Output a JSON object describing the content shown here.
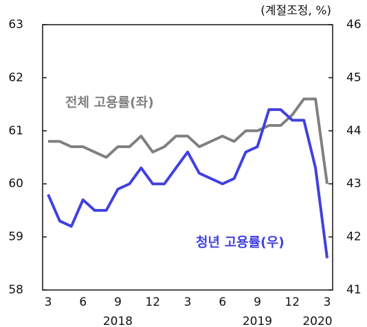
{
  "chart_data": {
    "type": "line",
    "unit_label": "(계절조정, %)",
    "categories": [
      "3",
      null,
      null,
      "6",
      null,
      null,
      "9",
      null,
      null,
      "12",
      null,
      null,
      "3",
      null,
      null,
      "6",
      null,
      null,
      "9",
      null,
      null,
      "12",
      null,
      null,
      "3"
    ],
    "years": [
      "2018",
      "2019",
      "2020"
    ],
    "ylim": [
      58,
      63
    ],
    "yticks": [
      58,
      59,
      60,
      61,
      62,
      63
    ],
    "y2lim": [
      41,
      46
    ],
    "y2ticks": [
      41,
      42,
      43,
      44,
      45,
      46
    ],
    "series": [
      {
        "name": "전체 고용률(좌)",
        "color": "#808080",
        "axis": "y",
        "values": [
          60.8,
          60.8,
          60.7,
          60.7,
          60.6,
          60.5,
          60.7,
          60.7,
          60.9,
          60.6,
          60.7,
          60.9,
          60.9,
          60.7,
          60.8,
          60.9,
          60.8,
          61.0,
          61.0,
          61.1,
          61.1,
          61.3,
          61.6,
          61.6,
          60.0
        ]
      },
      {
        "name": "청년 고용률(우)",
        "color": "#4040e0",
        "axis": "y2",
        "values": [
          42.8,
          42.3,
          42.2,
          42.7,
          42.5,
          42.5,
          42.9,
          43.0,
          43.3,
          43.0,
          43.0,
          43.3,
          43.6,
          43.2,
          43.1,
          43.0,
          43.1,
          43.6,
          43.7,
          44.4,
          44.4,
          44.2,
          44.2,
          43.3,
          41.6
        ]
      }
    ]
  }
}
